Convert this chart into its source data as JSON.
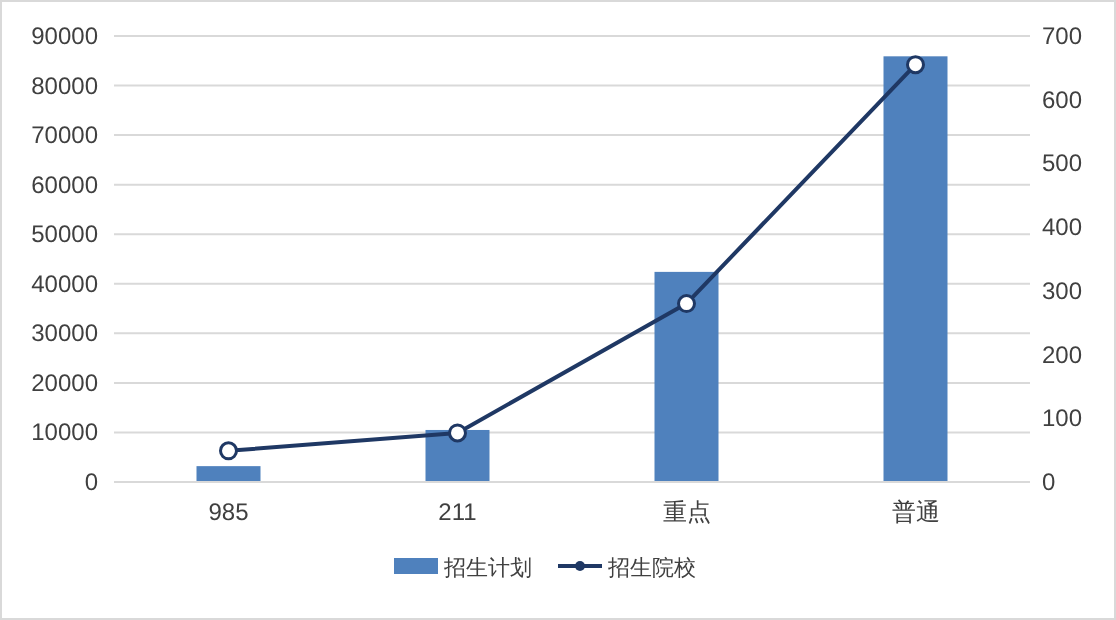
{
  "chart_data": {
    "type": "bar",
    "categories": [
      "985",
      "211",
      "重点",
      "普通"
    ],
    "series": [
      {
        "name": "招生计划",
        "color": "#4f81bd",
        "values": [
          3200,
          10500,
          42400,
          85900
        ]
      },
      {
        "name": "招生院校",
        "type": "line",
        "axis": "y2",
        "color": "#1f3864",
        "marker": "circle",
        "values": [
          49,
          77,
          280,
          655
        ]
      }
    ],
    "ylim": [
      0,
      90000
    ],
    "yticks": [
      0,
      10000,
      20000,
      30000,
      40000,
      50000,
      60000,
      70000,
      80000,
      90000
    ],
    "y2lim": [
      0,
      700
    ],
    "y2ticks": [
      0,
      100,
      200,
      300,
      400,
      500,
      600,
      700
    ],
    "grid": "y",
    "legend": "bottom"
  }
}
